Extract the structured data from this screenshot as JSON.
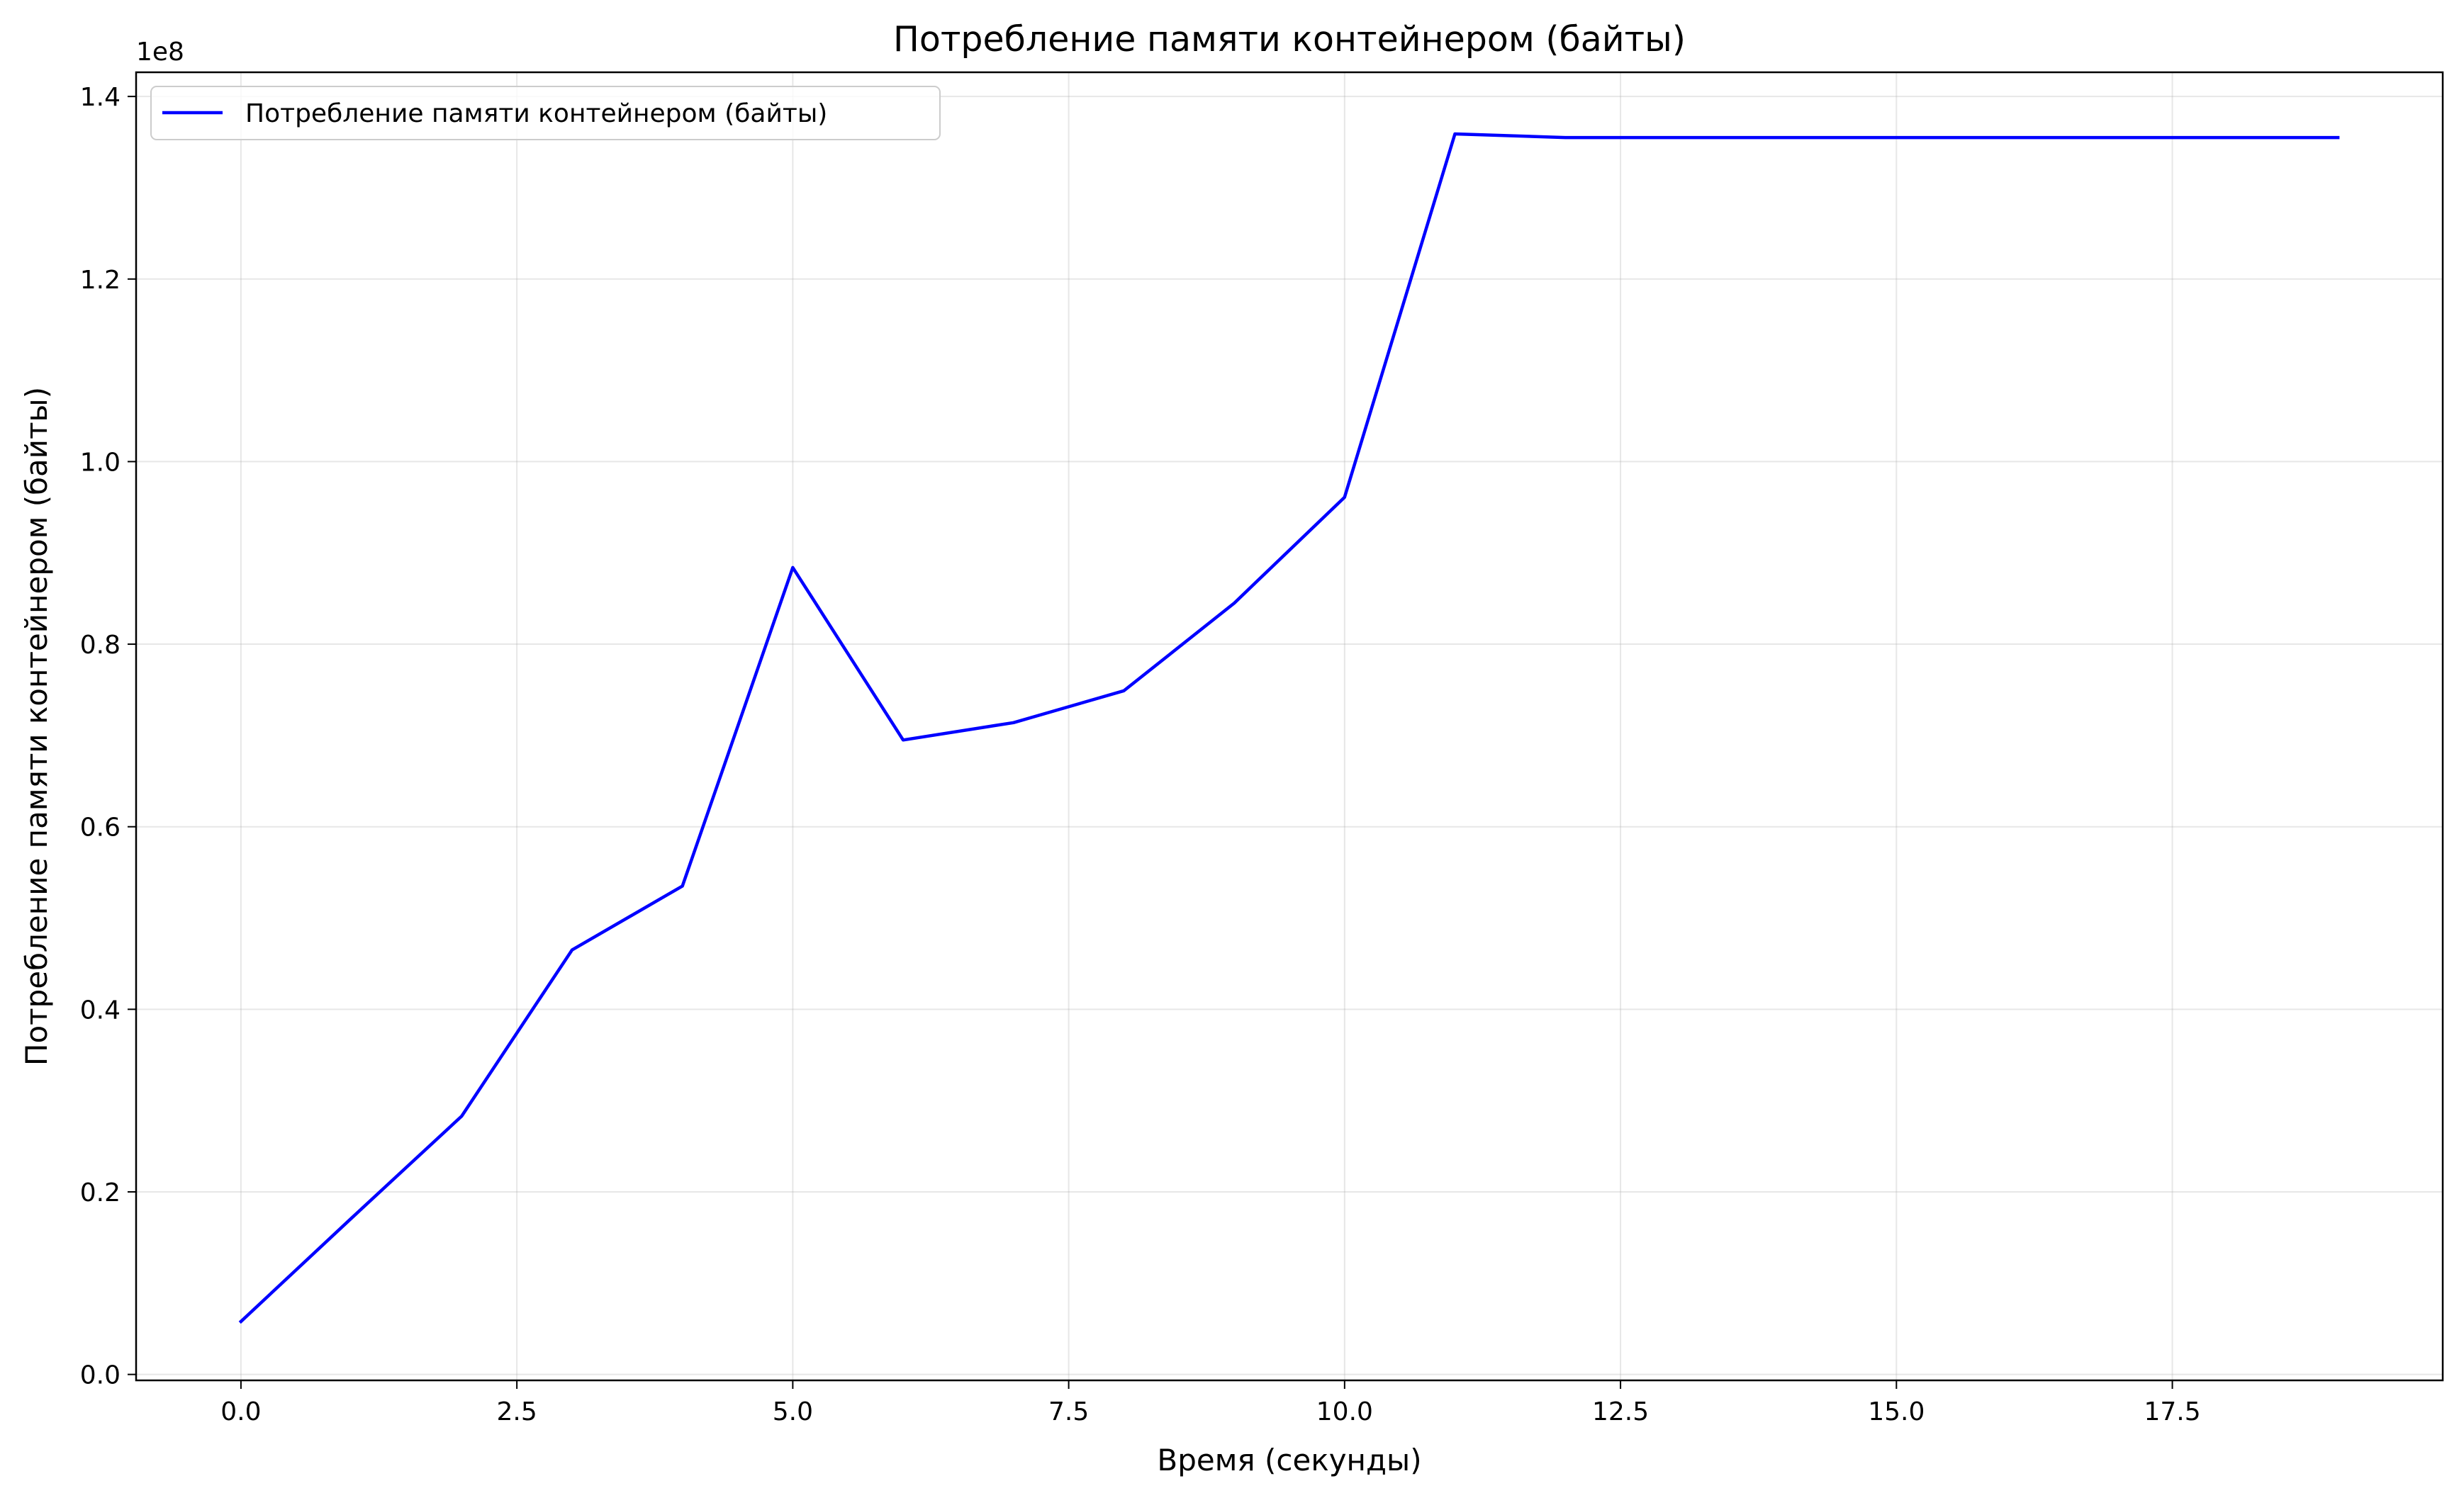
{
  "chart_data": {
    "type": "line",
    "title": "Потребление памяти контейнером  (байты)",
    "xlabel": "Время (секунды)",
    "ylabel": "Потребление памяти контейнером  (байты)",
    "y_offset_label": "1e8",
    "xlim": [
      -0.95,
      19.95
    ],
    "ylim": [
      -0.0065,
      1.4265
    ],
    "x_ticks": [
      0,
      2.5,
      5,
      7.5,
      10,
      12.5,
      15,
      17.5
    ],
    "x_tick_labels": [
      "0.0",
      "2.5",
      "5.0",
      "7.5",
      "10.0",
      "12.5",
      "15.0",
      "17.5"
    ],
    "y_ticks": [
      0,
      0.2,
      0.4,
      0.6,
      0.8,
      1.0,
      1.2,
      1.4
    ],
    "y_tick_labels": [
      "0.0",
      "0.2",
      "0.4",
      "0.6",
      "0.8",
      "1.0",
      "1.2",
      "1.4"
    ],
    "grid": true,
    "legend_position": "top-left",
    "series": [
      {
        "name": "Потребление памяти контейнером  (байты)",
        "color": "#0000ff",
        "x": [
          0,
          1,
          2,
          3,
          4,
          5,
          6,
          7,
          8,
          9,
          10,
          11,
          12,
          13,
          14,
          15,
          16,
          17,
          18,
          19
        ],
        "y": [
          0.058,
          0.171,
          0.283,
          0.465,
          0.535,
          0.884,
          0.695,
          0.714,
          0.749,
          0.845,
          0.961,
          1.359,
          1.355,
          1.355,
          1.355,
          1.355,
          1.355,
          1.355,
          1.355,
          1.355
        ]
      }
    ]
  }
}
